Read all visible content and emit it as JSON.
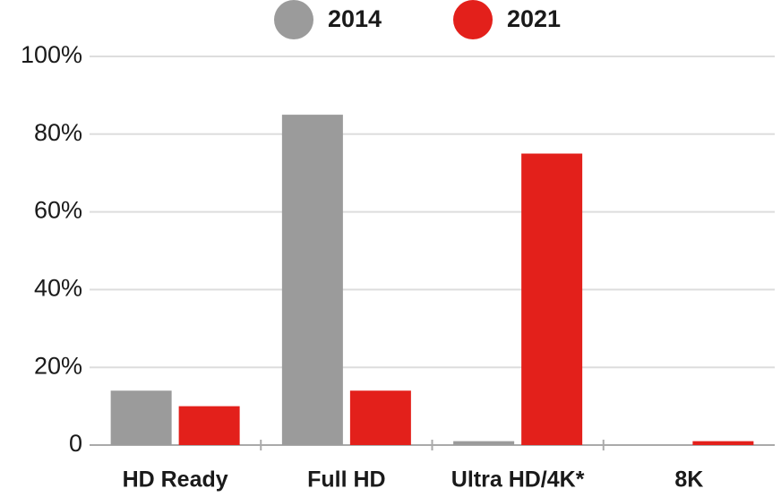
{
  "chart_data": {
    "type": "bar",
    "categories": [
      "HD Ready",
      "Full HD",
      "Ultra HD/4K*",
      "8K"
    ],
    "series": [
      {
        "name": "2014",
        "color": "#9b9b9b",
        "values": [
          14,
          85,
          1,
          0
        ]
      },
      {
        "name": "2021",
        "color": "#e3201b",
        "values": [
          10,
          14,
          75,
          1
        ]
      }
    ],
    "ylim": [
      0,
      100
    ],
    "yticks": [
      0,
      {
        "value": 20,
        "label": "20%"
      },
      {
        "value": 40,
        "label": "40%"
      },
      {
        "value": 60,
        "label": "60%"
      },
      {
        "value": 80,
        "label": "80%"
      },
      {
        "value": 100,
        "label": "100%"
      }
    ],
    "grid": true,
    "legend": "top"
  }
}
